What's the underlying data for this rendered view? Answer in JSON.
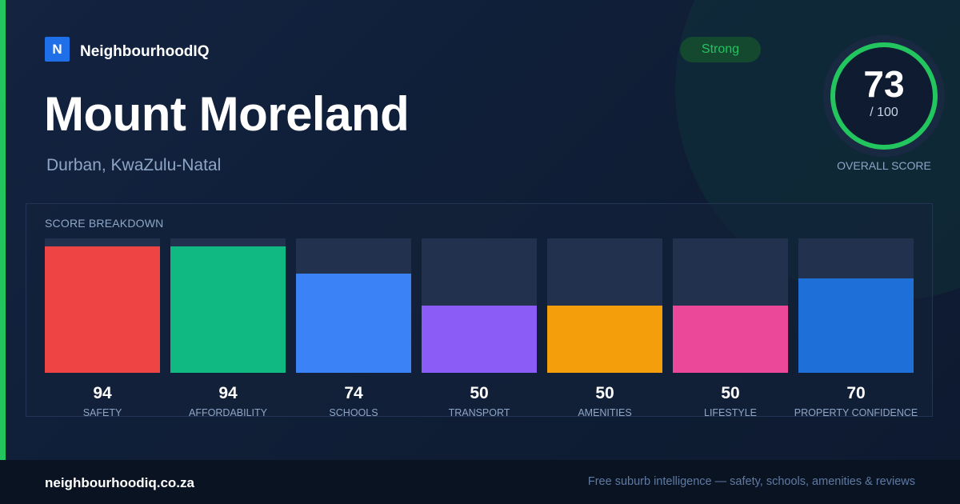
{
  "brand": {
    "logo_letter": "N",
    "name": "NeighbourhoodIQ",
    "logo_color": "#1e6fe8"
  },
  "header": {
    "title": "Mount Moreland",
    "subtitle": "Durban, KwaZulu-Natal"
  },
  "badge": {
    "label": "Strong",
    "color": "#22c55e"
  },
  "overall": {
    "score": "73",
    "max": "/ 100",
    "caption": "OVERALL SCORE",
    "ring_color": "#22c55e",
    "fraction": 0.73
  },
  "breakdown": {
    "title": "SCORE BREAKDOWN"
  },
  "chart_data": {
    "type": "bar",
    "categories": [
      "SAFETY",
      "AFFORDABILITY",
      "SCHOOLS",
      "TRANSPORT",
      "AMENITIES",
      "LIFESTYLE",
      "PROPERTY CONFIDENCE"
    ],
    "values": [
      94,
      94,
      74,
      50,
      50,
      50,
      70
    ],
    "colors": [
      "#ef4444",
      "#10b981",
      "#3b82f6",
      "#8b5cf6",
      "#f59e0b",
      "#ec4899",
      "#1f6fd8"
    ],
    "ylim": [
      0,
      100
    ],
    "title": "SCORE BREAKDOWN",
    "xlabel": "",
    "ylabel": ""
  },
  "footer": {
    "url": "neighbourhoodiq.co.za",
    "tagline": "Free suburb intelligence — safety, schools, amenities & reviews"
  }
}
